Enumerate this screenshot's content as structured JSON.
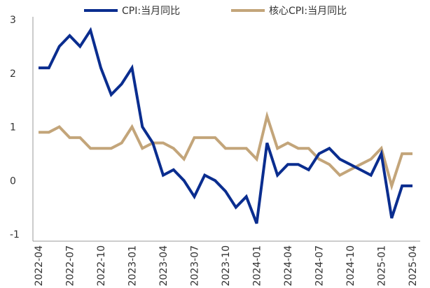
{
  "chart_data": {
    "type": "line",
    "title": "",
    "xlabel": "",
    "ylabel": "",
    "ylim": [
      -1,
      3
    ],
    "yticks": [
      "3",
      "2",
      "1",
      "0",
      "-1"
    ],
    "grid": false,
    "legend_position": "top",
    "x": [
      "2022-04",
      "2022-05",
      "2022-06",
      "2022-07",
      "2022-08",
      "2022-09",
      "2022-10",
      "2022-11",
      "2022-12",
      "2023-01",
      "2023-02",
      "2023-03",
      "2023-04",
      "2023-05",
      "2023-06",
      "2023-07",
      "2023-08",
      "2023-09",
      "2023-10",
      "2023-11",
      "2023-12",
      "2024-01",
      "2024-02",
      "2024-03",
      "2024-04",
      "2024-05",
      "2024-06",
      "2024-07",
      "2024-08",
      "2024-09",
      "2024-10",
      "2024-11",
      "2024-12",
      "2025-01",
      "2025-02",
      "2025-03",
      "2025-04"
    ],
    "xticks": [
      "2022-04",
      "2022-07",
      "2022-10",
      "2023-01",
      "2023-04",
      "2023-07",
      "2023-10",
      "2024-01",
      "2024-04",
      "2024-07",
      "2024-10",
      "2025-01",
      "2025-04"
    ],
    "series": [
      {
        "name": "CPI:当月同比",
        "color": "#0a2d8f",
        "values": [
          2.1,
          2.1,
          2.5,
          2.7,
          2.5,
          2.8,
          2.1,
          1.6,
          1.8,
          2.1,
          1.0,
          0.7,
          0.1,
          0.2,
          0.0,
          -0.3,
          0.1,
          0.0,
          -0.2,
          -0.5,
          -0.3,
          -0.8,
          0.7,
          0.1,
          0.3,
          0.3,
          0.2,
          0.5,
          0.6,
          0.4,
          0.3,
          0.2,
          0.1,
          0.5,
          -0.7,
          -0.1,
          -0.1
        ]
      },
      {
        "name": "核心CPI:当月同比",
        "color": "#c3a57a",
        "values": [
          0.9,
          0.9,
          1.0,
          0.8,
          0.8,
          0.6,
          0.6,
          0.6,
          0.7,
          1.0,
          0.6,
          0.7,
          0.7,
          0.6,
          0.4,
          0.8,
          0.8,
          0.8,
          0.6,
          0.6,
          0.6,
          0.4,
          1.2,
          0.6,
          0.7,
          0.6,
          0.6,
          0.4,
          0.3,
          0.1,
          0.2,
          0.3,
          0.4,
          0.6,
          -0.1,
          0.5,
          0.5
        ]
      }
    ]
  }
}
